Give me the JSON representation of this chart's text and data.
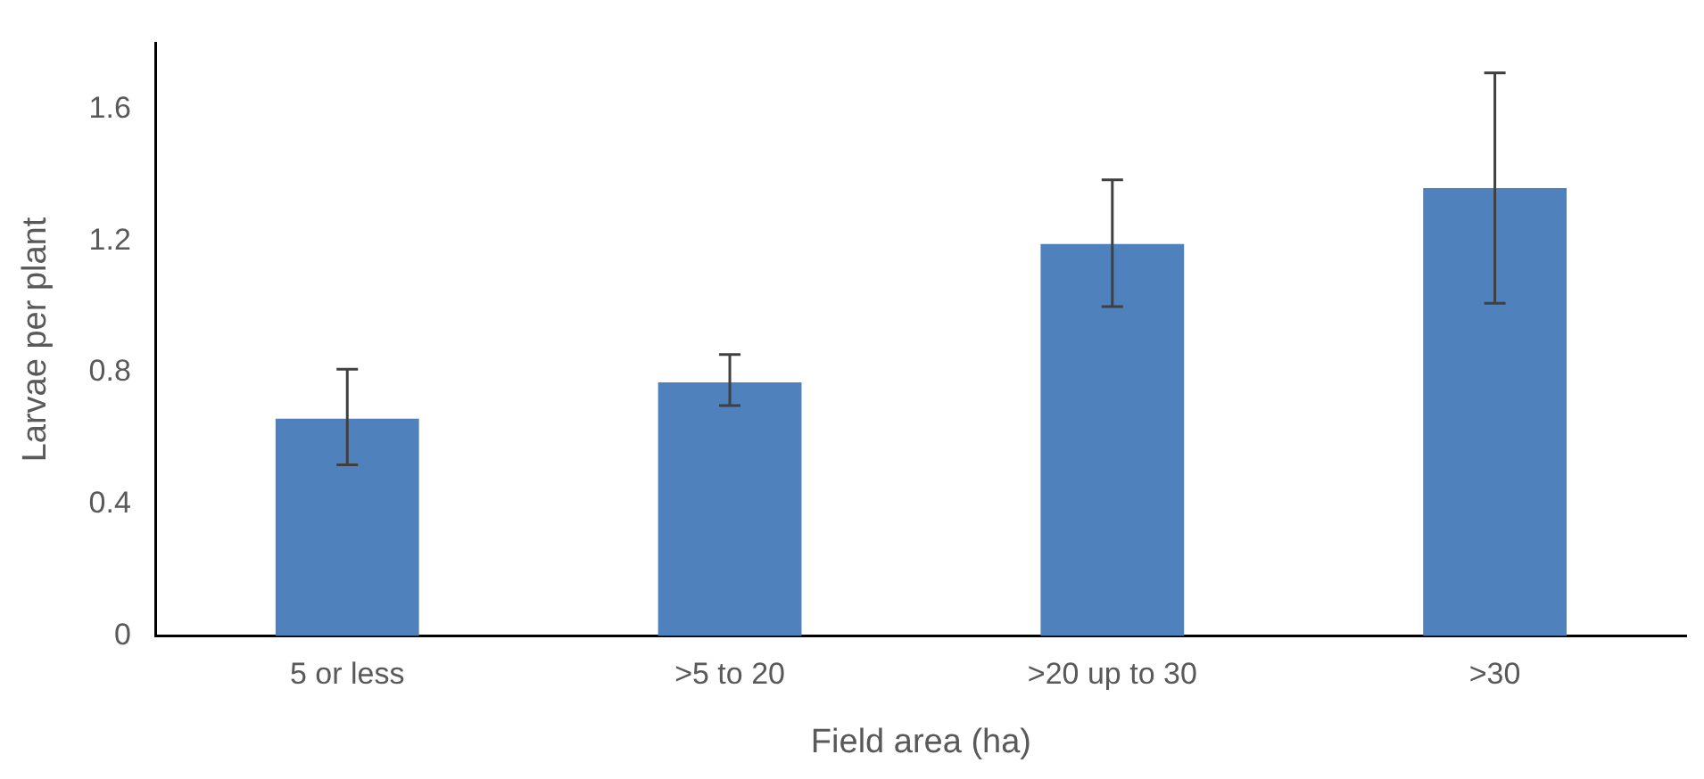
{
  "chart_data": {
    "type": "bar",
    "xlabel": "Field area (ha)",
    "ylabel": "Larvae per plant",
    "categories": [
      "5 or less",
      ">5 to 20",
      ">20 up to 30",
      ">30"
    ],
    "values": [
      0.66,
      0.77,
      1.19,
      1.36
    ],
    "errors": [
      [
        0.52,
        0.81
      ],
      [
        0.7,
        0.855
      ],
      [
        1.0,
        1.385
      ],
      [
        1.01,
        1.71
      ]
    ],
    "color": "#4f81bd",
    "ylim": [
      0,
      1.8
    ],
    "yticks": [
      0,
      0.4,
      0.8,
      1.2,
      1.6
    ],
    "grid": false,
    "legend": false
  }
}
